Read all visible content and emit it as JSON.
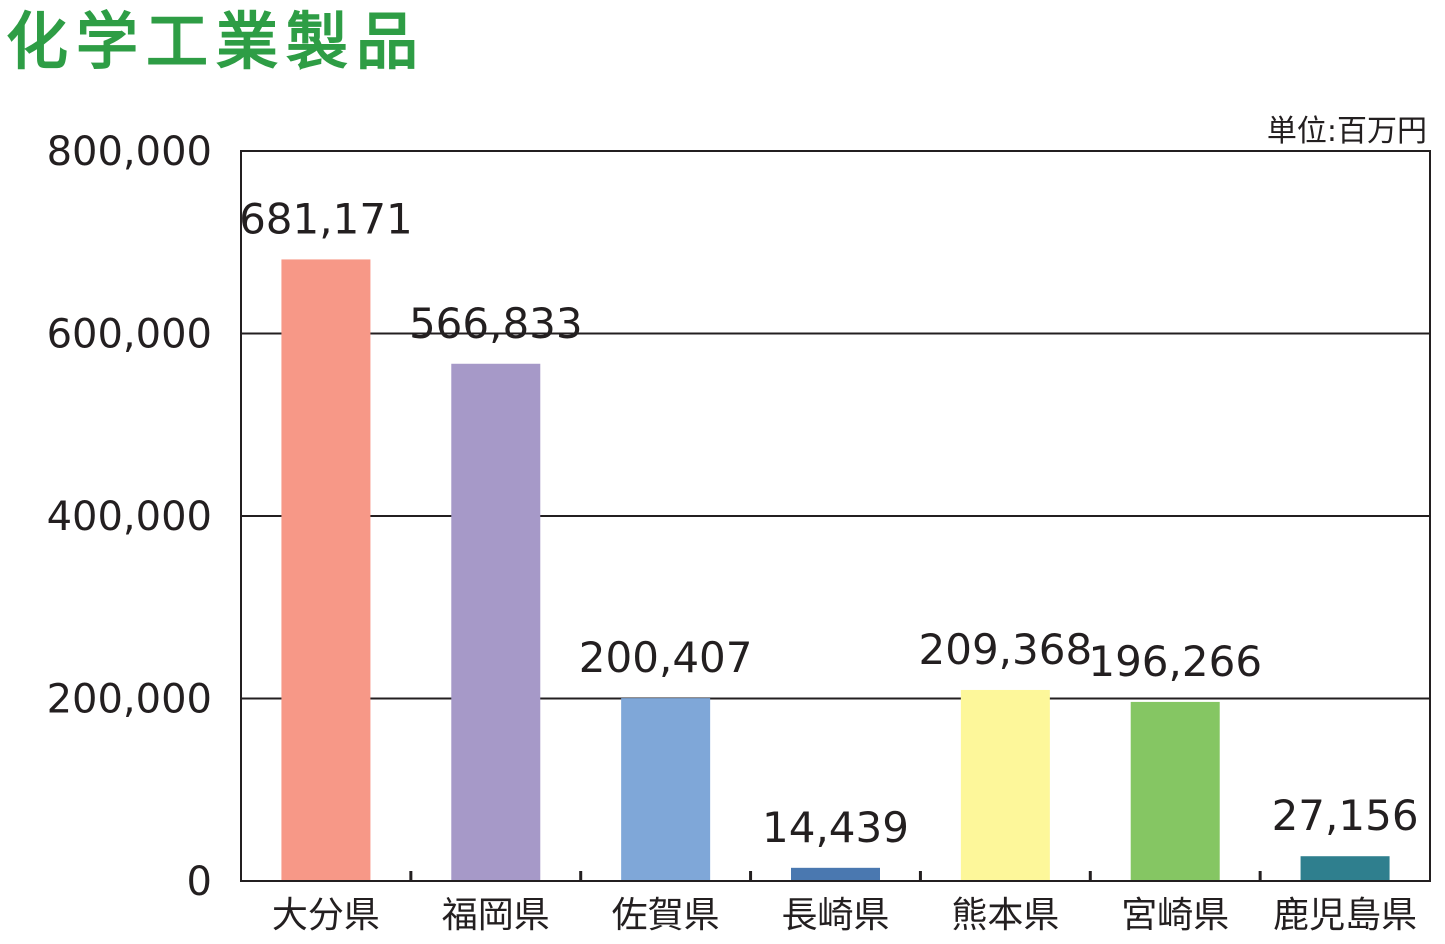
{
  "chart_data": {
    "type": "bar",
    "title": "化学工業製品",
    "unit": "単位:百万円",
    "categories": [
      "大分県",
      "福岡県",
      "佐賀県",
      "長崎県",
      "熊本県",
      "宮崎県",
      "鹿児島県"
    ],
    "values": [
      681171,
      566833,
      200407,
      14439,
      209368,
      196266,
      27156
    ],
    "value_labels": [
      "681,171",
      "566,833",
      "200,407",
      "14,439",
      "209,368",
      "196,266",
      "27,156"
    ],
    "colors": [
      "#f79887",
      "#a699c8",
      "#7fa7d8",
      "#4a78b0",
      "#fdf79a",
      "#85c663",
      "#2f7f8e"
    ],
    "ylim": [
      0,
      800000
    ],
    "yticks": [
      0,
      200000,
      400000,
      600000,
      800000
    ],
    "ytick_labels": [
      "0",
      "200,000",
      "400,000",
      "600,000",
      "800,000"
    ],
    "grid": true,
    "title_color": "#2e9d45",
    "axis_color": "#231f20"
  }
}
